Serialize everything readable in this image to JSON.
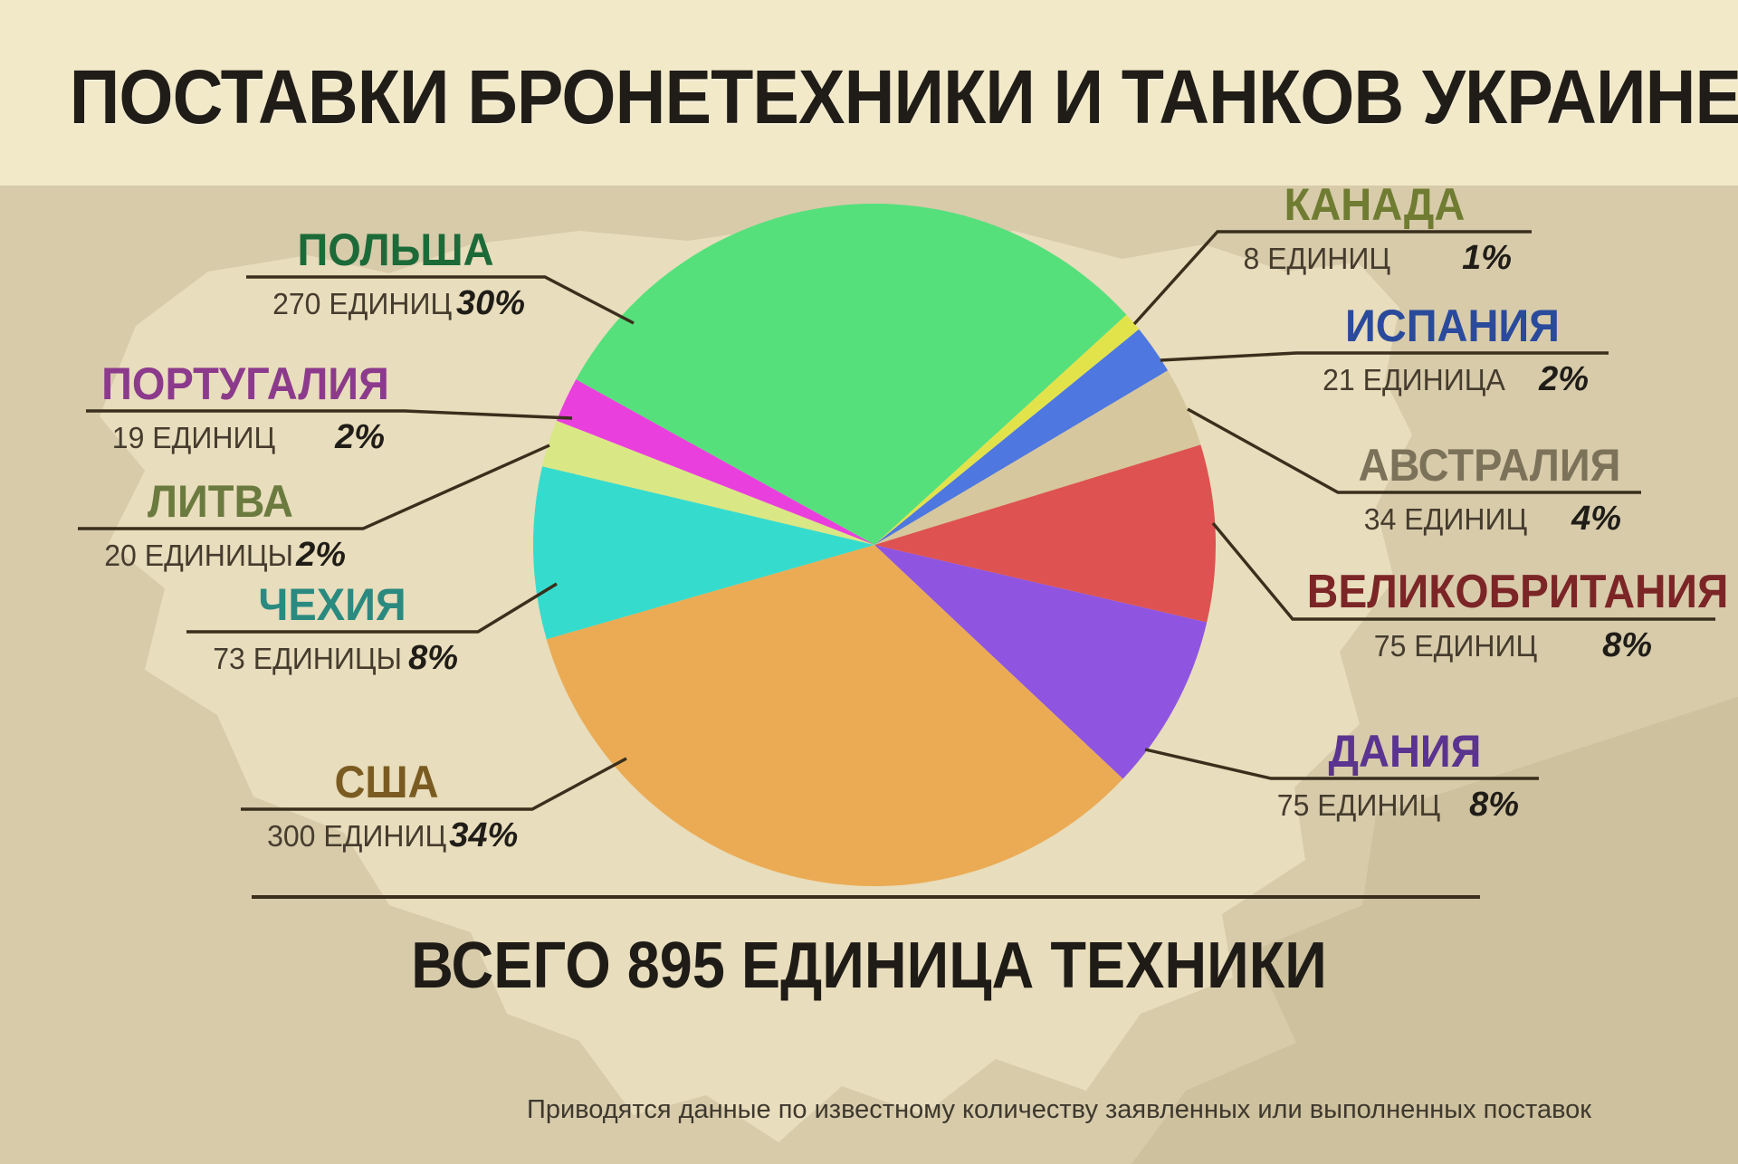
{
  "title": "ПОСТАВКИ БРОНЕТЕХНИКИ И ТАНКОВ УКРАИНЕ",
  "total_label": "ВСЕГО 895 ЕДИНИЦА ТЕХНИКИ",
  "footnote": "Приводятся данные по известному количеству заявленных или выполненных поставок",
  "colors": {
    "header_background": "#f2e9c9",
    "page_background": "#d7cbaa",
    "map_silhouette": "#e8ddbc",
    "leader_line": "#3a2f1c",
    "units_text": "#463c2e",
    "percent_text": "#201d18"
  },
  "chart_data": {
    "type": "pie",
    "title": "Поставки бронетехники и танков Украине",
    "total_units": 895,
    "start_angle_deg": 299,
    "legend_position": "around",
    "slices": [
      {
        "id": "poland",
        "country": "ПОЛЬША",
        "units": 270,
        "units_label": "270 ЕДИНИЦ",
        "percent": 30,
        "percent_label": "30%",
        "color": "#55e07c",
        "label_color": "#1d6a39"
      },
      {
        "id": "canada",
        "country": "КАНАДА",
        "units": 8,
        "units_label": "8 ЕДИНИЦ",
        "percent": 1,
        "percent_label": "1%",
        "color": "#e2e34b",
        "label_color": "#6f7c31"
      },
      {
        "id": "spain",
        "country": "ИСПАНИЯ",
        "units": 21,
        "units_label": "21 ЕДИНИЦА",
        "percent": 2,
        "percent_label": "2%",
        "color": "#4e78df",
        "label_color": "#2a4a9b"
      },
      {
        "id": "australia",
        "country": "АВСТРАЛИЯ",
        "units": 34,
        "units_label": "34 ЕДИНИЦ",
        "percent": 4,
        "percent_label": "4%",
        "color": "#d6c79e",
        "label_color": "#7b7259"
      },
      {
        "id": "uk",
        "country": "ВЕЛИКОБРИТАНИЯ",
        "units": 75,
        "units_label": "75 ЕДИНИЦ",
        "percent": 8,
        "percent_label": "8%",
        "color": "#de5251",
        "label_color": "#7c2527"
      },
      {
        "id": "denmark",
        "country": "ДАНИЯ",
        "units": 75,
        "units_label": "75 ЕДИНИЦ",
        "percent": 8,
        "percent_label": "8%",
        "color": "#8f55e0",
        "label_color": "#5b3390"
      },
      {
        "id": "usa",
        "country": "США",
        "units": 300,
        "units_label": "300 ЕДИНИЦ",
        "percent": 34,
        "percent_label": "34%",
        "color": "#eaab54",
        "label_color": "#7a5b21"
      },
      {
        "id": "czechia",
        "country": "ЧЕХИЯ",
        "units": 73,
        "units_label": "73 ЕДИНИЦЫ",
        "percent": 8,
        "percent_label": "8%",
        "color": "#35dccd",
        "label_color": "#2a8a80"
      },
      {
        "id": "lithuania",
        "country": "ЛИТВА",
        "units": 20,
        "units_label": "20 ЕДИНИЦЫ",
        "percent": 2,
        "percent_label": "2%",
        "color": "#dae785",
        "label_color": "#6b7a3e"
      },
      {
        "id": "portugal",
        "country": "ПОРТУГАЛИЯ",
        "units": 19,
        "units_label": "19 ЕДИНИЦ",
        "percent": 2,
        "percent_label": "2%",
        "color": "#e93fdd",
        "label_color": "#8c3a8c"
      }
    ]
  }
}
